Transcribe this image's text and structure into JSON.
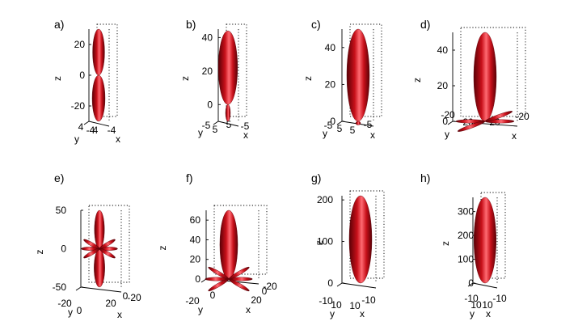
{
  "colors": {
    "lobe": "#c8101a",
    "lobe_highlight": "#ff6a72",
    "lobe_shadow": "#5a0006"
  },
  "chart_data": [
    {
      "type": "3d-surface",
      "label": "a)",
      "zlabel": "z",
      "xlabel": "x",
      "ylabel": "y",
      "zticks": [
        "20",
        "0",
        "-20"
      ],
      "xticks": [
        "4",
        "-4"
      ],
      "yticks": [
        "4",
        "-4"
      ],
      "zlim": [
        -30,
        30
      ],
      "xlim": [
        -4,
        4
      ],
      "ylim": [
        -4,
        4
      ],
      "lobes": [
        {
          "direction": "+z",
          "length": 30
        },
        {
          "direction": "-z",
          "length": 30
        }
      ]
    },
    {
      "type": "3d-surface",
      "label": "b)",
      "zlabel": "z",
      "xlabel": "x",
      "ylabel": "y",
      "zticks": [
        "40",
        "20",
        "0"
      ],
      "xticks": [
        "5",
        "-5"
      ],
      "yticks": [
        "5",
        "-5"
      ],
      "zlim": [
        -10,
        45
      ],
      "xlim": [
        -5,
        5
      ],
      "ylim": [
        -5,
        5
      ],
      "lobes": [
        {
          "direction": "+z",
          "length": 44
        },
        {
          "direction": "-z",
          "length": 10
        }
      ]
    },
    {
      "type": "3d-surface",
      "label": "c)",
      "zlabel": "z",
      "xlabel": "x",
      "ylabel": "y",
      "zticks": [
        "40",
        "20",
        "0"
      ],
      "xticks": [
        "5",
        "-5"
      ],
      "yticks": [
        "5",
        "-5"
      ],
      "zlim": [
        0,
        50
      ],
      "xlim": [
        -5,
        5
      ],
      "ylim": [
        -5,
        5
      ],
      "lobes": [
        {
          "direction": "+z",
          "length": 50
        },
        {
          "direction": "-z",
          "length": 2
        }
      ]
    },
    {
      "type": "3d-surface",
      "label": "d)",
      "zlabel": "z",
      "xlabel": "x",
      "ylabel": "y",
      "zticks": [
        "40",
        "20",
        "0"
      ],
      "xticks": [
        "20",
        "-20"
      ],
      "yticks": [
        "20",
        "-20"
      ],
      "zlim": [
        0,
        50
      ],
      "xlim": [
        -20,
        20
      ],
      "ylim": [
        -20,
        20
      ],
      "lobes": [
        {
          "direction": "+z",
          "length": 50
        },
        {
          "direction": "xy",
          "count": 4,
          "length": 20
        }
      ]
    },
    {
      "type": "3d-surface",
      "label": "e)",
      "zlabel": "z",
      "xlabel": "x",
      "ylabel": "y",
      "zticks": [
        "50",
        "0",
        "-50"
      ],
      "xticks": [
        "20",
        "0",
        "-20"
      ],
      "yticks": [
        "0",
        "-20"
      ],
      "zlim": [
        -50,
        50
      ],
      "xlim": [
        -20,
        20
      ],
      "ylim": [
        -20,
        20
      ],
      "lobes": [
        {
          "direction": "+z",
          "length": 50
        },
        {
          "direction": "-z",
          "length": 50
        },
        {
          "direction": "xy",
          "count": 6,
          "length": 20
        }
      ]
    },
    {
      "type": "3d-surface",
      "label": "f)",
      "zlabel": "z",
      "xlabel": "x",
      "ylabel": "y",
      "zticks": [
        "60",
        "40",
        "20",
        "0"
      ],
      "xticks": [
        "20",
        "0",
        "-20"
      ],
      "yticks": [
        "0",
        "-20"
      ],
      "zlim": [
        0,
        70
      ],
      "xlim": [
        -20,
        20
      ],
      "ylim": [
        -20,
        20
      ],
      "lobes": [
        {
          "direction": "+z",
          "length": 70
        },
        {
          "direction": "xy",
          "count": 6,
          "length": 22
        }
      ]
    },
    {
      "type": "3d-surface",
      "label": "g)",
      "zlabel": "z",
      "xlabel": "x",
      "ylabel": "y",
      "zticks": [
        "200",
        "100",
        "0"
      ],
      "xticks": [
        "10",
        "-10"
      ],
      "yticks": [
        "10",
        "-10"
      ],
      "zlim": [
        0,
        210
      ],
      "xlim": [
        -10,
        10
      ],
      "ylim": [
        -10,
        10
      ],
      "lobes": [
        {
          "direction": "+z",
          "length": 210
        }
      ]
    },
    {
      "type": "3d-surface",
      "label": "h)",
      "zlabel": "z",
      "xlabel": "x",
      "ylabel": "y",
      "zticks": [
        "300",
        "200",
        "100",
        "0"
      ],
      "xticks": [
        "10",
        "-10"
      ],
      "yticks": [
        "10",
        "-10"
      ],
      "zlim": [
        0,
        360
      ],
      "xlim": [
        -10,
        10
      ],
      "ylim": [
        -10,
        10
      ],
      "lobes": [
        {
          "direction": "+z",
          "length": 360
        }
      ]
    }
  ]
}
